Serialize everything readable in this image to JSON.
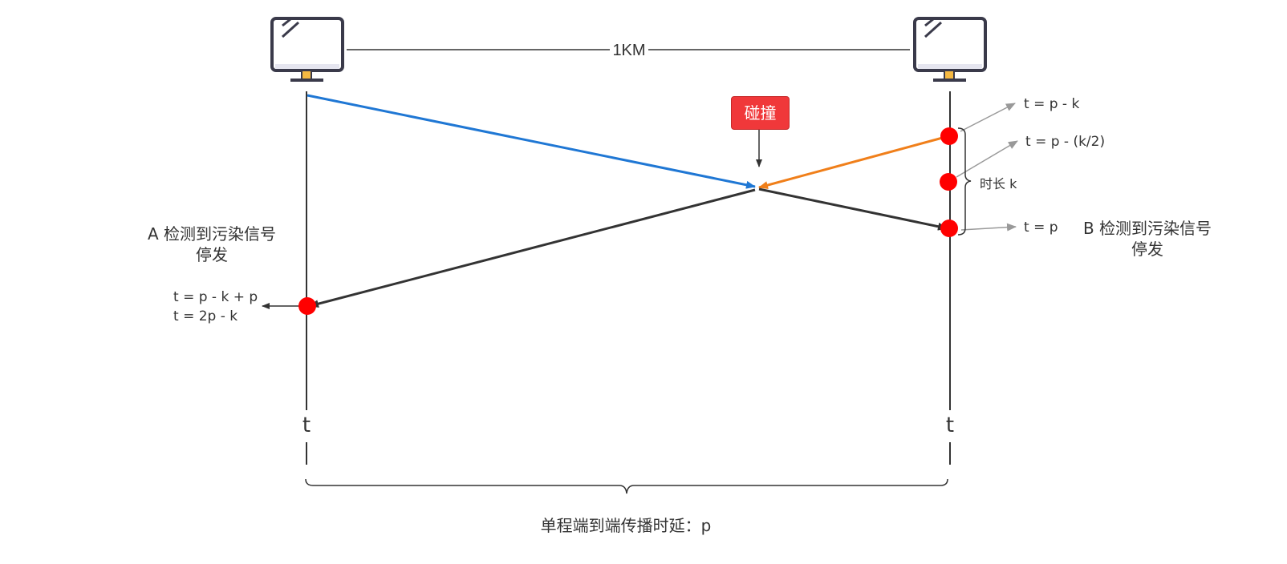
{
  "distance_label": "1KM",
  "collision_label": "碰撞",
  "time_labels": {
    "t_p_minus_k": "t = p - k",
    "t_p_minus_half_k": "t = p - (k/2)",
    "duration_k": "时长 k",
    "t_p": "t = p",
    "a_time_1": "t = p - k + p",
    "a_time_2": "t = 2p - k"
  },
  "host_a": {
    "detect_line1": "A 检测到污染信号",
    "detect_line2": "停发",
    "axis_label": "t"
  },
  "host_b": {
    "detect_line1": "B 检测到污染信号",
    "detect_line2": "停发",
    "axis_label": "t"
  },
  "caption": "单程端到端传播时延：p",
  "colors": {
    "a_signal": "#1f77d4",
    "b_signal": "#f07f1a",
    "jam_signal": "#333333",
    "event_dot": "#ff0000",
    "collision_badge": "#f0383a",
    "annotation_arrow": "#999999"
  },
  "icons": {
    "host": "monitor-icon"
  }
}
